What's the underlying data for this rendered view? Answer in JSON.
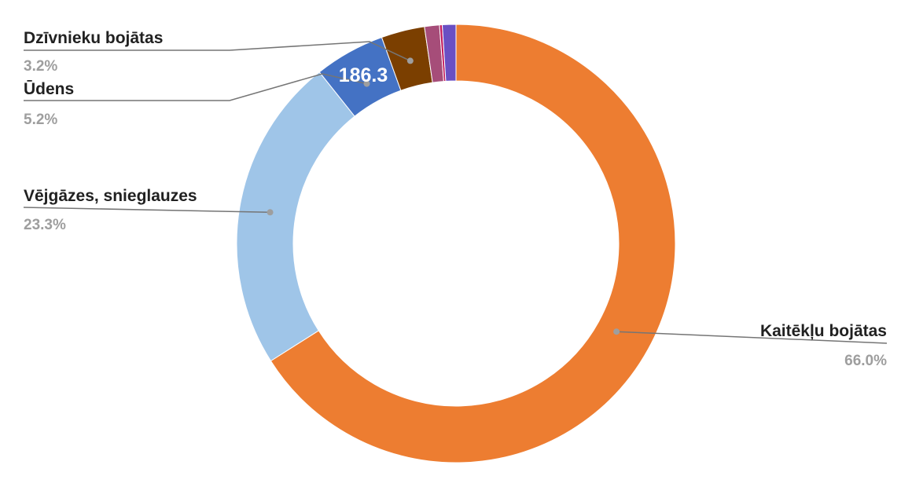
{
  "chart_data": {
    "type": "pie",
    "donut": true,
    "slices": [
      {
        "label": "Kaitēkļu bojātas",
        "percent": 66.0,
        "percent_text": "66.0%",
        "color": "#ED7D31"
      },
      {
        "label": "Vējgāzes, snieglauzes",
        "percent": 23.3,
        "percent_text": "23.3%",
        "color": "#9FC5E8"
      },
      {
        "label": "Ūdens",
        "percent": 5.2,
        "percent_text": "5.2%",
        "color": "#4472C4",
        "value_label": "186.3"
      },
      {
        "label": "Dzīvnieku bojātas",
        "percent": 3.2,
        "percent_text": "3.2%",
        "color": "#7B3F00"
      },
      {
        "label": "",
        "percent": 1.1,
        "color": "#A64D79"
      },
      {
        "label": "",
        "percent": 0.2,
        "color": "#C2185B"
      },
      {
        "label": "",
        "percent": 1.0,
        "color": "#6A4FC3"
      }
    ],
    "labeled_slices": [
      {
        "index": 3,
        "name": "Dzīvnieku bojātas",
        "pct": "3.2%",
        "side": "left"
      },
      {
        "index": 2,
        "name": "Ūdens",
        "pct": "5.2%",
        "side": "left"
      },
      {
        "index": 1,
        "name": "Vējgāzes, snieglauzes",
        "pct": "23.3%",
        "side": "left"
      },
      {
        "index": 0,
        "name": "Kaitēkļu bojātas",
        "pct": "66.0%",
        "side": "right"
      }
    ],
    "legend": "none"
  }
}
